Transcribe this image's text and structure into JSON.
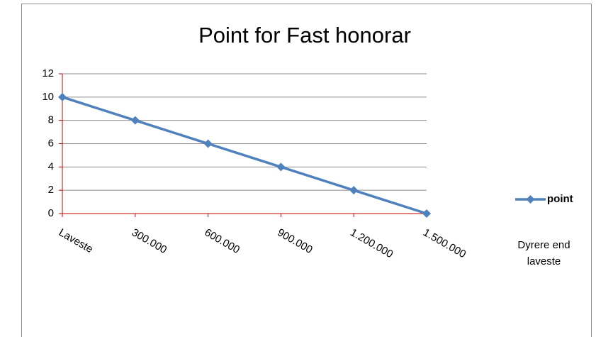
{
  "chart_data": {
    "type": "line",
    "title": "Point for Fast honorar",
    "x_label": "Dyrere end laveste",
    "categories": [
      "Laveste",
      "300.000",
      "600.000",
      "900.000",
      "1.200.000",
      "1.500.000"
    ],
    "series": [
      {
        "name": "point",
        "color": "#4f81bd",
        "values": [
          10,
          8,
          6,
          4,
          2,
          0
        ]
      }
    ],
    "ylim": [
      0,
      12
    ],
    "yticks": [
      0,
      2,
      4,
      6,
      8,
      10,
      12
    ],
    "grid": true,
    "legend": "right"
  }
}
